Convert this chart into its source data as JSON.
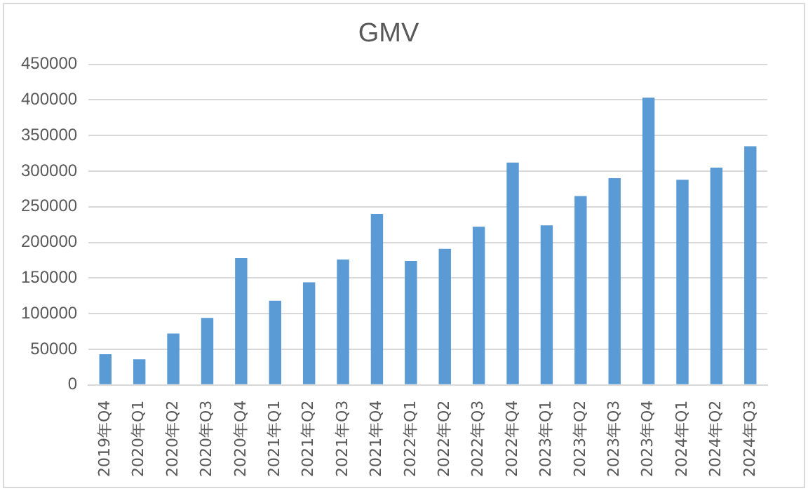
{
  "chart_data": {
    "type": "bar",
    "title": "GMV",
    "categories": [
      "2019年Q4",
      "2020年Q1",
      "2020年Q2",
      "2020年Q3",
      "2020年Q4",
      "2021年Q1",
      "2021年Q2",
      "2021年Q3",
      "2021年Q4",
      "2022年Q1",
      "2022年Q2",
      "2022年Q3",
      "2022年Q4",
      "2023年Q1",
      "2023年Q2",
      "2023年Q3",
      "2023年Q4",
      "2024年Q1",
      "2024年Q2",
      "2024年Q3"
    ],
    "values": [
      43000,
      36000,
      72000,
      94000,
      178000,
      118000,
      144000,
      176000,
      240000,
      174000,
      191000,
      222000,
      312000,
      224000,
      265000,
      290000,
      403000,
      288000,
      305000,
      335000
    ],
    "color": "#5b9bd5",
    "ylim": [
      0,
      450000
    ],
    "yticks": [
      0,
      50000,
      100000,
      150000,
      200000,
      250000,
      300000,
      350000,
      400000,
      450000
    ],
    "grid": "y"
  }
}
